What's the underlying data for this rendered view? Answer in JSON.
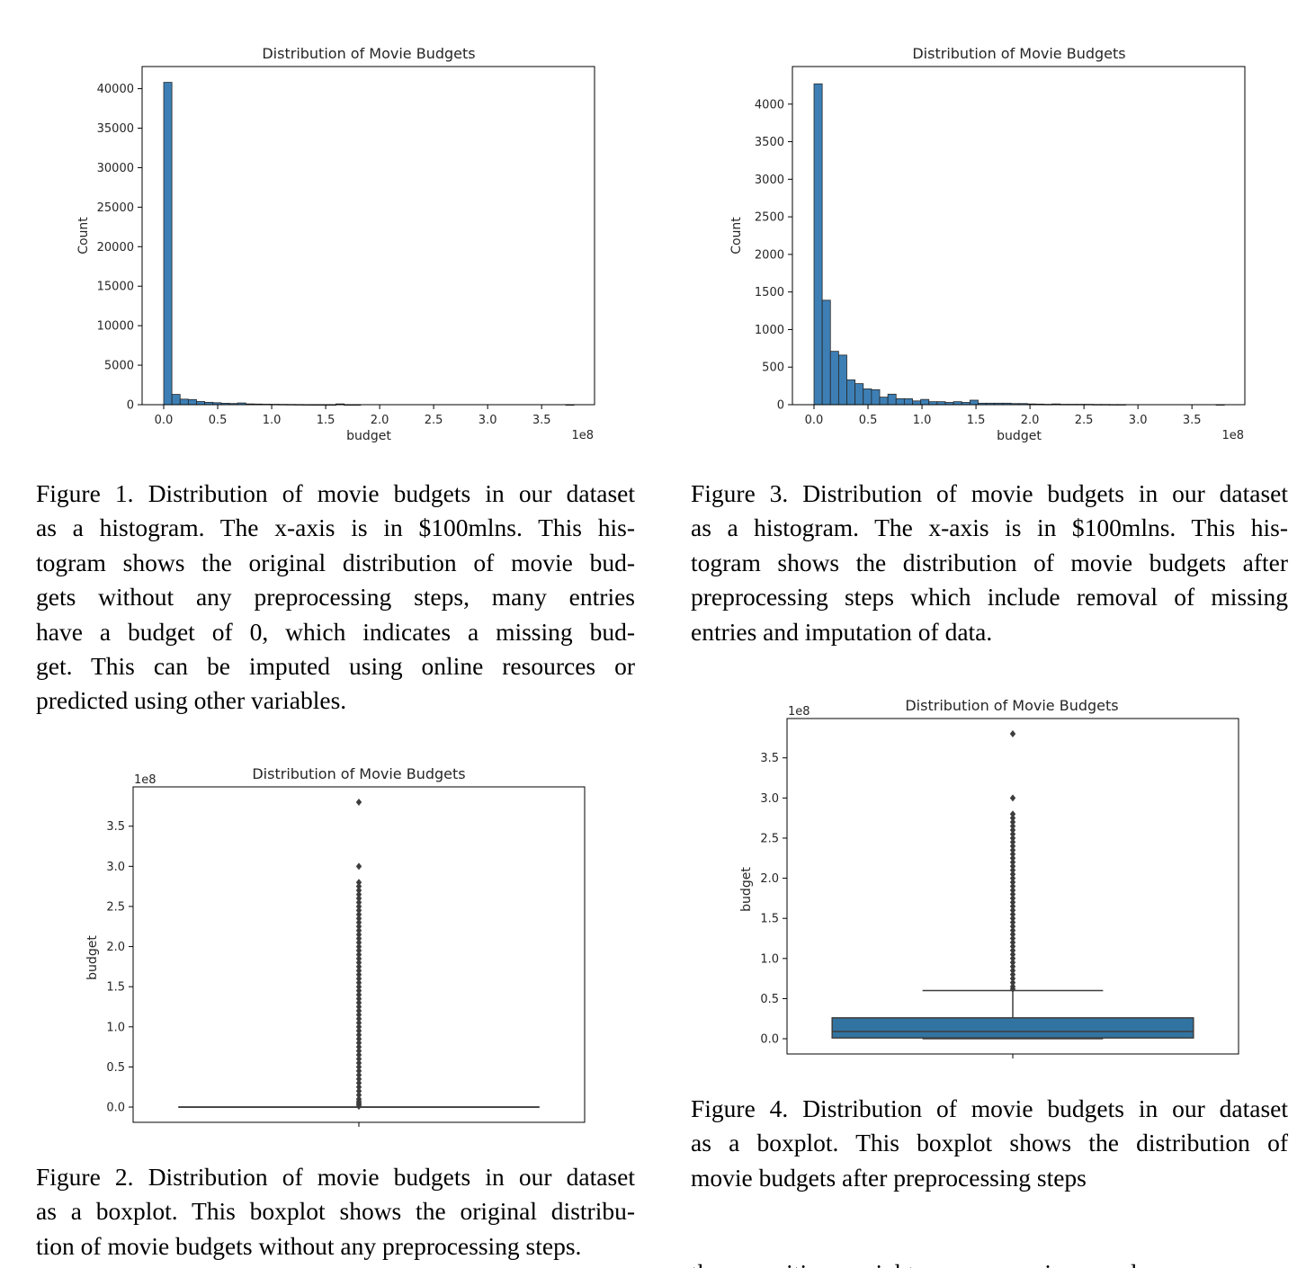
{
  "chart_data": [
    {
      "id": "fig1",
      "type": "bar",
      "title": "Distribution of Movie Budgets",
      "xlabel": "budget",
      "ylabel": "Count",
      "x_offset_label": "1e8",
      "xlim": [
        -0.2,
        3.99
      ],
      "ylim": [
        0,
        42800
      ],
      "x_ticks": [
        "0.0",
        "0.5",
        "1.0",
        "1.5",
        "2.0",
        "2.5",
        "3.0",
        "3.5"
      ],
      "y_ticks": [
        "0",
        "5000",
        "10000",
        "15000",
        "20000",
        "25000",
        "30000",
        "35000",
        "40000"
      ],
      "bin_width": 0.076,
      "bin_start": 0.0,
      "values": [
        40800,
        1300,
        700,
        650,
        400,
        300,
        250,
        180,
        150,
        220,
        100,
        80,
        60,
        50,
        40,
        30,
        20,
        10,
        5,
        3,
        2,
        100,
        1,
        1,
        0,
        0,
        0,
        0,
        0,
        0,
        0,
        0,
        0,
        0,
        0,
        0,
        0,
        0,
        0,
        0,
        0,
        0,
        0,
        0,
        0,
        0,
        0,
        0,
        0,
        1
      ],
      "grid": false,
      "legend": "none",
      "color": "#3d7fb5"
    },
    {
      "id": "fig3",
      "type": "bar",
      "title": "Distribution of Movie Budgets",
      "xlabel": "budget",
      "ylabel": "Count",
      "x_offset_label": "1e8",
      "xlim": [
        -0.2,
        3.99
      ],
      "ylim": [
        0,
        4500
      ],
      "x_ticks": [
        "0.0",
        "0.5",
        "1.0",
        "1.5",
        "2.0",
        "2.5",
        "3.0",
        "3.5"
      ],
      "y_ticks": [
        "0",
        "500",
        "1000",
        "1500",
        "2000",
        "2500",
        "3000",
        "3500",
        "4000"
      ],
      "bin_width": 0.076,
      "bin_start": 0.0,
      "values": [
        4270,
        1390,
        710,
        660,
        330,
        280,
        210,
        200,
        100,
        140,
        80,
        80,
        50,
        70,
        40,
        40,
        30,
        40,
        30,
        60,
        20,
        20,
        20,
        20,
        15,
        15,
        10,
        8,
        5,
        10,
        5,
        5,
        5,
        5,
        3,
        3,
        2,
        2,
        0,
        0,
        0,
        0,
        0,
        0,
        0,
        0,
        0,
        0,
        0,
        1
      ],
      "grid": false,
      "legend": "none",
      "color": "#3d7fb5"
    },
    {
      "id": "fig2",
      "type": "boxplot",
      "title": "Distribution of Movie Budgets",
      "ylabel": "budget",
      "y_offset_label": "1e8",
      "ylim": [
        -0.19,
        3.99
      ],
      "y_ticks": [
        "0.0",
        "0.5",
        "1.0",
        "1.5",
        "2.0",
        "2.5",
        "3.0",
        "3.5"
      ],
      "box": {
        "q1": 0,
        "median": 0,
        "q3": 0,
        "whisker_low": 0,
        "whisker_high": 0
      },
      "outliers": [
        3.8,
        3.0,
        2.8,
        2.75,
        2.7,
        2.65,
        2.6,
        2.55,
        2.5,
        2.45,
        2.4,
        2.35,
        2.3,
        2.25,
        2.2,
        2.15,
        2.1,
        2.05,
        2.0,
        1.95,
        1.9,
        1.85,
        1.8,
        1.75,
        1.7,
        1.65,
        1.6,
        1.55,
        1.5,
        1.45,
        1.4,
        1.35,
        1.3,
        1.25,
        1.2,
        1.15,
        1.1,
        1.05,
        1.0,
        0.95,
        0.9,
        0.85,
        0.8,
        0.75,
        0.7,
        0.65,
        0.6,
        0.55,
        0.5,
        0.45,
        0.4,
        0.35,
        0.3,
        0.25,
        0.2,
        0.15,
        0.1,
        0.07,
        0.05,
        0.03,
        0.01
      ],
      "color": "#3a3a3a"
    },
    {
      "id": "fig4",
      "type": "boxplot",
      "title": "Distribution of Movie Budgets",
      "ylabel": "budget",
      "y_offset_label": "1e8",
      "ylim": [
        -0.19,
        3.99
      ],
      "y_ticks": [
        "0.0",
        "0.5",
        "1.0",
        "1.5",
        "2.0",
        "2.5",
        "3.0",
        "3.5"
      ],
      "box": {
        "q1": 0.01,
        "median": 0.09,
        "q3": 0.26,
        "whisker_low": 0.0,
        "whisker_high": 0.6
      },
      "outliers": [
        3.8,
        3.0,
        2.8,
        2.75,
        2.7,
        2.65,
        2.6,
        2.55,
        2.5,
        2.45,
        2.4,
        2.35,
        2.3,
        2.25,
        2.2,
        2.15,
        2.1,
        2.05,
        2.0,
        1.95,
        1.9,
        1.85,
        1.8,
        1.75,
        1.7,
        1.65,
        1.6,
        1.55,
        1.5,
        1.45,
        1.4,
        1.35,
        1.3,
        1.25,
        1.2,
        1.15,
        1.1,
        1.05,
        1.0,
        0.95,
        0.9,
        0.85,
        0.8,
        0.75,
        0.7,
        0.65,
        0.62
      ],
      "color": "#3274a1"
    }
  ],
  "captions": {
    "fig1": [
      "Figure 1. Distribution of movie budgets in our dataset",
      "as a histogram. The x-axis is in $100mlns. This his-",
      "togram shows the original distribution of movie bud-",
      "gets without any preprocessing steps, many entries",
      "have a budget of 0, which indicates a missing bud-",
      "get. This can be imputed using online resources or",
      "predicted using other variables."
    ],
    "fig3": [
      "Figure 3. Distribution of movie budgets in our dataset",
      "as a histogram. The x-axis is in $100mlns. This his-",
      "togram shows the distribution of movie budgets after",
      "preprocessing steps which include removal of missing",
      "entries and imputation of data."
    ],
    "fig2": [
      "Figure 2. Distribution of movie budgets in our dataset",
      "as a boxplot. This boxplot shows the original distribu-",
      "tion of movie budgets without any preprocessing steps."
    ],
    "fig4": [
      "Figure 4. Distribution of movie budgets in our dataset",
      "as a boxplot. This boxplot shows the distribution of",
      "movie budgets after preprocessing steps"
    ]
  },
  "body_fragment": "the opposition... might... preprocessing... and"
}
